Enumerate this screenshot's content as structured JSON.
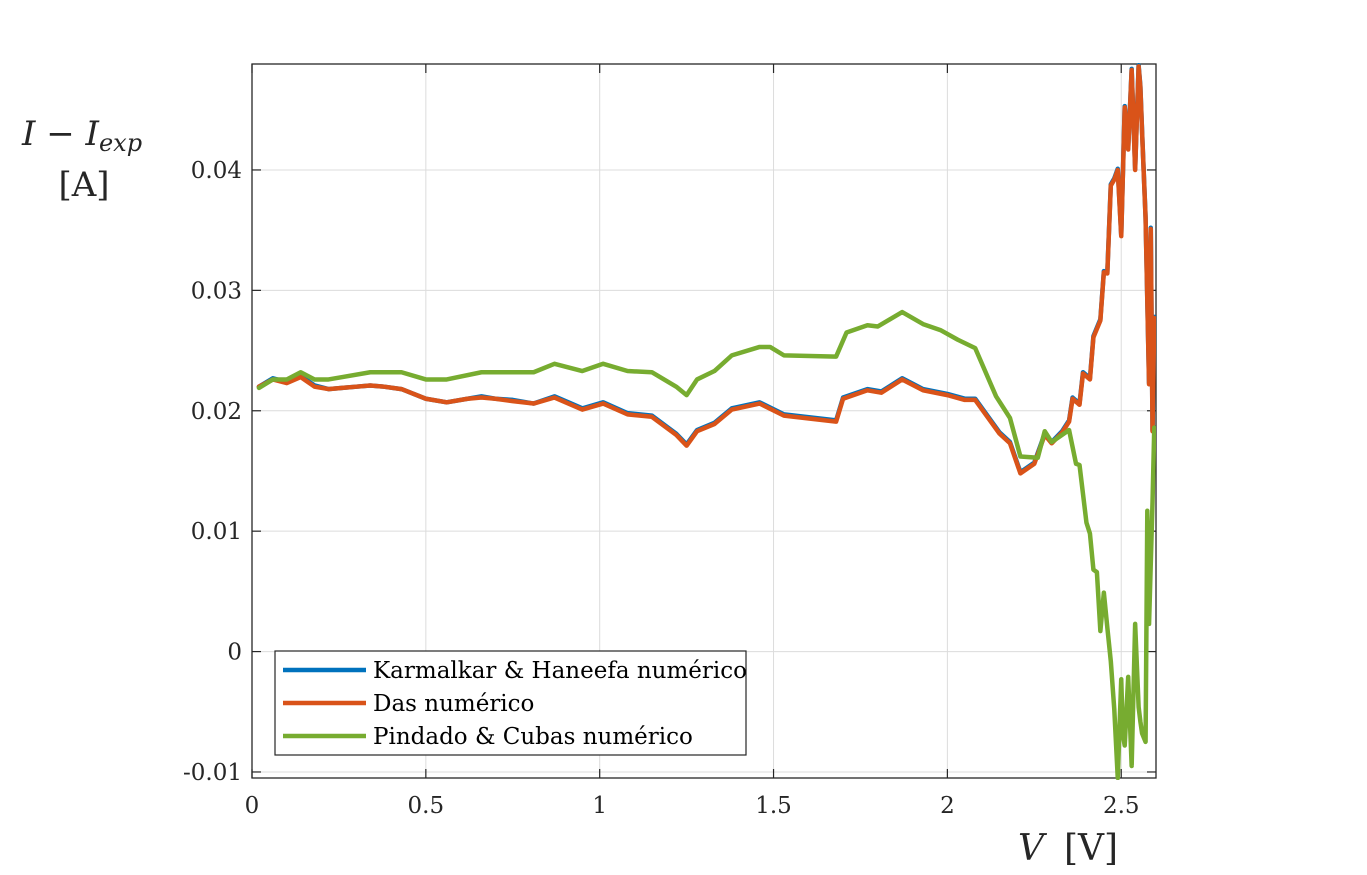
{
  "chart_data": {
    "type": "line",
    "xlabel": "V",
    "xlabel_unit": "[V]",
    "ylabel": "I − I",
    "ylabel_sub": "exp",
    "ylabel_unit": "[A]",
    "xlim": [
      0,
      2.6
    ],
    "ylim": [
      -0.0105,
      0.0488
    ],
    "x_ticks": [
      0,
      0.5,
      1,
      1.5,
      2,
      2.5
    ],
    "x_tick_labels": [
      "0",
      "0.5",
      "1",
      "1.5",
      "2",
      "2.5"
    ],
    "y_ticks": [
      -0.01,
      0,
      0.01,
      0.02,
      0.03,
      0.04
    ],
    "y_tick_labels": [
      "-0.01",
      "0",
      "0.01",
      "0.02",
      "0.03",
      "0.04"
    ],
    "grid": true,
    "legend_position": "bottom-left",
    "series": [
      {
        "name": "Karmalkar & Haneefa numérico",
        "color": "#0072BD",
        "x": [
          0.02,
          0.06,
          0.1,
          0.14,
          0.18,
          0.22,
          0.26,
          0.3,
          0.34,
          0.38,
          0.43,
          0.5,
          0.56,
          0.62,
          0.66,
          0.7,
          0.75,
          0.81,
          0.87,
          0.95,
          1.01,
          1.08,
          1.15,
          1.22,
          1.25,
          1.28,
          1.33,
          1.38,
          1.46,
          1.53,
          1.68,
          1.7,
          1.77,
          1.81,
          1.87,
          1.93,
          2.0,
          2.05,
          2.08,
          2.15,
          2.18,
          2.21,
          2.25,
          2.28,
          2.3,
          2.33,
          2.35,
          2.36,
          2.38,
          2.39,
          2.41,
          2.42,
          2.44,
          2.45,
          2.46,
          2.47,
          2.48,
          2.49,
          2.5,
          2.51,
          2.52,
          2.53,
          2.54,
          2.55,
          2.555,
          2.56,
          2.57,
          2.58,
          2.585,
          2.59,
          2.595
        ],
        "y": [
          0.022,
          0.0227,
          0.0224,
          0.0229,
          0.0221,
          0.0218,
          0.0219,
          0.022,
          0.0221,
          0.022,
          0.0218,
          0.021,
          0.0207,
          0.021,
          0.0212,
          0.021,
          0.0209,
          0.0206,
          0.0212,
          0.0202,
          0.0207,
          0.0198,
          0.0196,
          0.0181,
          0.0172,
          0.0184,
          0.019,
          0.0202,
          0.0207,
          0.0197,
          0.0192,
          0.0211,
          0.0218,
          0.0216,
          0.0227,
          0.0218,
          0.0214,
          0.021,
          0.021,
          0.0182,
          0.0174,
          0.0149,
          0.0157,
          0.0181,
          0.0174,
          0.0183,
          0.0192,
          0.0211,
          0.0206,
          0.0232,
          0.0227,
          0.0262,
          0.0276,
          0.0316,
          0.0315,
          0.0388,
          0.0393,
          0.0401,
          0.0346,
          0.0453,
          0.0418,
          0.0484,
          0.0401,
          0.0487,
          0.047,
          0.0432,
          0.0361,
          0.0223,
          0.0352,
          0.0184,
          0.0278
        ]
      },
      {
        "name": "Das numérico",
        "color": "#D95319",
        "x": [
          0.02,
          0.06,
          0.1,
          0.14,
          0.18,
          0.22,
          0.26,
          0.3,
          0.34,
          0.38,
          0.43,
          0.5,
          0.56,
          0.62,
          0.66,
          0.7,
          0.75,
          0.81,
          0.87,
          0.95,
          1.01,
          1.08,
          1.15,
          1.22,
          1.25,
          1.28,
          1.33,
          1.38,
          1.46,
          1.53,
          1.68,
          1.7,
          1.77,
          1.81,
          1.87,
          1.93,
          2.0,
          2.05,
          2.08,
          2.15,
          2.18,
          2.21,
          2.25,
          2.28,
          2.3,
          2.33,
          2.35,
          2.36,
          2.38,
          2.39,
          2.41,
          2.42,
          2.44,
          2.45,
          2.46,
          2.47,
          2.48,
          2.49,
          2.5,
          2.51,
          2.52,
          2.53,
          2.54,
          2.55,
          2.555,
          2.56,
          2.57,
          2.58,
          2.585,
          2.59,
          2.595
        ],
        "y": [
          0.022,
          0.0226,
          0.0223,
          0.0228,
          0.022,
          0.0218,
          0.0219,
          0.022,
          0.0221,
          0.022,
          0.0218,
          0.021,
          0.0207,
          0.021,
          0.0211,
          0.021,
          0.0208,
          0.0206,
          0.0211,
          0.0201,
          0.0206,
          0.0197,
          0.0195,
          0.018,
          0.0171,
          0.0183,
          0.0189,
          0.0201,
          0.0206,
          0.0196,
          0.0191,
          0.021,
          0.0217,
          0.0215,
          0.0226,
          0.0217,
          0.0213,
          0.0209,
          0.0209,
          0.0181,
          0.0173,
          0.0148,
          0.0156,
          0.018,
          0.0173,
          0.0182,
          0.0191,
          0.021,
          0.0205,
          0.0231,
          0.0226,
          0.0261,
          0.0275,
          0.0315,
          0.0314,
          0.0387,
          0.0392,
          0.04,
          0.0345,
          0.0452,
          0.0417,
          0.0483,
          0.04,
          0.0486,
          0.0469,
          0.0431,
          0.036,
          0.0222,
          0.0351,
          0.0183,
          0.0277
        ]
      },
      {
        "name": "Pindado & Cubas numérico",
        "color": "#77AC30",
        "x": [
          0.02,
          0.06,
          0.1,
          0.14,
          0.18,
          0.22,
          0.26,
          0.34,
          0.43,
          0.5,
          0.56,
          0.66,
          0.81,
          0.87,
          0.95,
          1.01,
          1.08,
          1.15,
          1.22,
          1.25,
          1.28,
          1.33,
          1.38,
          1.46,
          1.49,
          1.53,
          1.68,
          1.71,
          1.77,
          1.8,
          1.87,
          1.93,
          1.98,
          2.03,
          2.08,
          2.14,
          2.18,
          2.21,
          2.26,
          2.28,
          2.3,
          2.32,
          2.35,
          2.37,
          2.38,
          2.4,
          2.41,
          2.42,
          2.43,
          2.44,
          2.45,
          2.46,
          2.47,
          2.48,
          2.49,
          2.5,
          2.505,
          2.51,
          2.52,
          2.53,
          2.54,
          2.55,
          2.555,
          2.56,
          2.57,
          2.575,
          2.58,
          2.59,
          2.595
        ],
        "y": [
          0.0219,
          0.0226,
          0.0226,
          0.0232,
          0.0226,
          0.0226,
          0.0228,
          0.0232,
          0.0232,
          0.0226,
          0.0226,
          0.0232,
          0.0232,
          0.0239,
          0.0233,
          0.0239,
          0.0233,
          0.0232,
          0.022,
          0.0213,
          0.0226,
          0.0233,
          0.0246,
          0.0253,
          0.0253,
          0.0246,
          0.0245,
          0.0265,
          0.0271,
          0.027,
          0.0282,
          0.0272,
          0.0267,
          0.0259,
          0.0252,
          0.0212,
          0.0194,
          0.0162,
          0.0161,
          0.0183,
          0.0174,
          0.0178,
          0.0184,
          0.0156,
          0.0155,
          0.0107,
          0.0098,
          0.0068,
          0.0066,
          0.0017,
          0.0049,
          0.002,
          -0.0008,
          -0.0048,
          -0.0105,
          -0.0023,
          -0.007,
          -0.0078,
          -0.0021,
          -0.0095,
          0.0023,
          -0.0046,
          -0.0058,
          -0.0068,
          -0.0075,
          0.0117,
          0.0023,
          0.0124,
          0.0186
        ]
      }
    ]
  }
}
